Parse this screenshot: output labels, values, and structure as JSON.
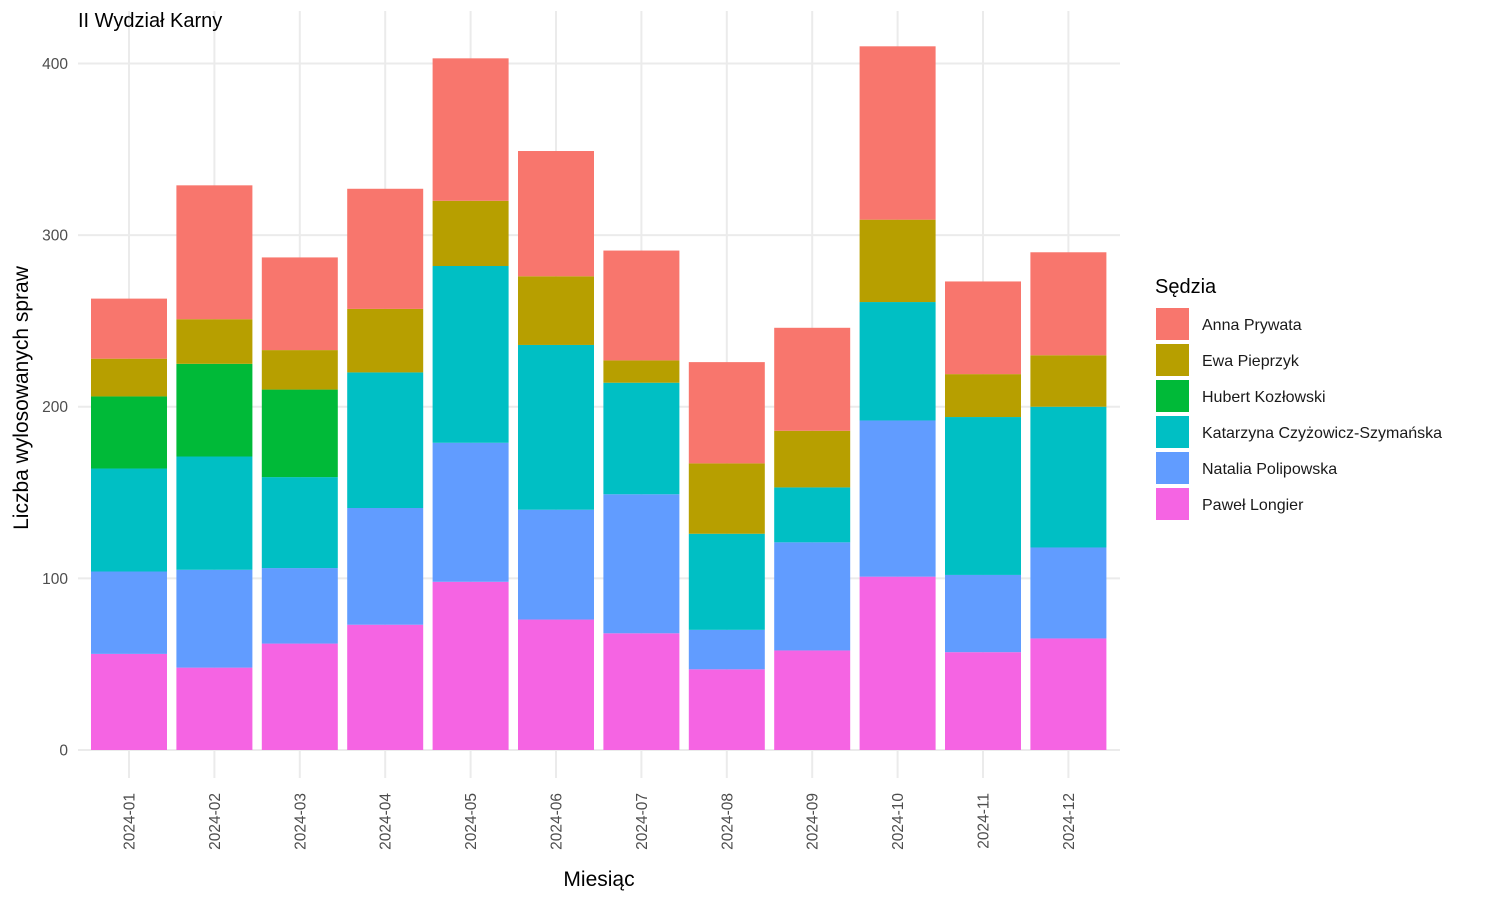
{
  "chart_data": {
    "type": "bar",
    "stacked": true,
    "title": "II Wydział Karny",
    "xlabel": "Miesiąc",
    "ylabel": "Liczba wylosowanych spraw",
    "ylim": [
      0,
      420
    ],
    "y_ticks": [
      "0",
      "100",
      "200",
      "300",
      "400"
    ],
    "grid": true,
    "legend_title": "Sędzia",
    "legend_position": "right",
    "categories": [
      "2024-01",
      "2024-02",
      "2024-03",
      "2024-04",
      "2024-05",
      "2024-06",
      "2024-07",
      "2024-08",
      "2024-09",
      "2024-10",
      "2024-11",
      "2024-12"
    ],
    "series": [
      {
        "name": "Anna Prywata",
        "color": "#F8766D",
        "values": [
          35,
          78,
          54,
          70,
          83,
          73,
          64,
          59,
          60,
          101,
          54,
          60
        ]
      },
      {
        "name": "Ewa Pieprzyk",
        "color": "#B79F00",
        "values": [
          22,
          26,
          23,
          37,
          38,
          40,
          13,
          41,
          33,
          48,
          25,
          30
        ]
      },
      {
        "name": "Hubert Kozłowski",
        "color": "#00BA38",
        "values": [
          42,
          54,
          51,
          0,
          0,
          0,
          0,
          0,
          0,
          0,
          0,
          0
        ]
      },
      {
        "name": "Katarzyna Czyżowicz-Szymańska",
        "color": "#00BFC4",
        "values": [
          60,
          66,
          53,
          79,
          103,
          96,
          65,
          56,
          32,
          69,
          92,
          82
        ]
      },
      {
        "name": "Natalia Polipowska",
        "color": "#619CFF",
        "values": [
          48,
          57,
          44,
          68,
          81,
          64,
          81,
          23,
          63,
          91,
          45,
          53
        ]
      },
      {
        "name": "Paweł Longier",
        "color": "#F564E3",
        "values": [
          56,
          48,
          62,
          73,
          98,
          76,
          68,
          47,
          58,
          101,
          57,
          65
        ]
      }
    ]
  }
}
